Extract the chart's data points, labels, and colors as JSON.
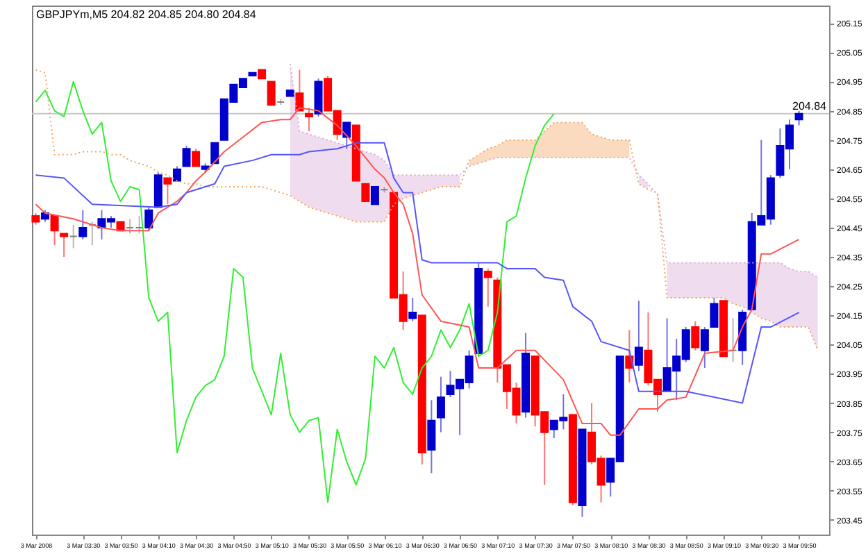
{
  "chart_data": {
    "type": "candlestick",
    "title": "GBPJPYm,M5 204.82 204.85 204.80 204.84",
    "x": [
      "2008-03-03T03:05",
      "2008-03-03T03:10",
      "2008-03-03T03:15",
      "2008-03-03T03:20",
      "2008-03-03T03:25",
      "2008-03-03T03:30",
      "2008-03-03T03:35",
      "2008-03-03T03:40",
      "2008-03-03T03:45",
      "2008-03-03T03:50",
      "2008-03-03T03:55",
      "2008-03-03T04:00",
      "2008-03-03T04:05",
      "2008-03-03T04:10",
      "2008-03-03T04:15",
      "2008-03-03T04:20",
      "2008-03-03T04:25",
      "2008-03-03T04:30",
      "2008-03-03T04:35",
      "2008-03-03T04:40",
      "2008-03-03T04:45",
      "2008-03-03T04:50",
      "2008-03-03T04:55",
      "2008-03-03T05:00",
      "2008-03-03T05:05",
      "2008-03-03T05:10",
      "2008-03-03T05:15",
      "2008-03-03T05:20",
      "2008-03-03T05:25",
      "2008-03-03T05:30",
      "2008-03-03T05:35",
      "2008-03-03T05:40",
      "2008-03-03T05:45",
      "2008-03-03T05:50",
      "2008-03-03T05:55",
      "2008-03-03T06:00",
      "2008-03-03T06:05",
      "2008-03-03T06:10",
      "2008-03-03T06:15",
      "2008-03-03T06:20",
      "2008-03-03T06:25",
      "2008-03-03T06:30",
      "2008-03-03T06:35",
      "2008-03-03T06:40",
      "2008-03-03T06:45",
      "2008-03-03T06:50",
      "2008-03-03T06:55",
      "2008-03-03T07:00",
      "2008-03-03T07:05",
      "2008-03-03T07:10",
      "2008-03-03T07:15",
      "2008-03-03T07:20",
      "2008-03-03T07:25",
      "2008-03-03T07:30",
      "2008-03-03T07:35",
      "2008-03-03T07:40",
      "2008-03-03T07:45",
      "2008-03-03T07:50",
      "2008-03-03T07:55",
      "2008-03-03T08:00",
      "2008-03-03T08:05",
      "2008-03-03T08:10",
      "2008-03-03T08:15",
      "2008-03-03T08:20",
      "2008-03-03T08:25",
      "2008-03-03T08:30",
      "2008-03-03T08:35",
      "2008-03-03T08:40",
      "2008-03-03T08:45",
      "2008-03-03T08:50",
      "2008-03-03T08:55",
      "2008-03-03T09:00",
      "2008-03-03T09:05",
      "2008-03-03T09:10",
      "2008-03-03T09:15",
      "2008-03-03T09:20",
      "2008-03-03T09:25",
      "2008-03-03T09:30",
      "2008-03-03T09:35",
      "2008-03-03T09:40",
      "2008-03-03T09:45",
      "2008-03-03T09:50",
      "2008-03-03T09:55",
      "2008-03-03T10:00"
    ],
    "ohlc": [
      [
        204.49,
        204.5,
        204.46,
        204.47
      ],
      [
        204.48,
        204.51,
        204.47,
        204.5
      ],
      [
        204.49,
        204.49,
        204.39,
        204.44
      ],
      [
        204.43,
        204.43,
        204.35,
        204.42
      ],
      [
        204.42,
        204.46,
        204.38,
        204.42
      ],
      [
        204.42,
        204.51,
        204.41,
        204.45
      ],
      [
        204.46,
        204.47,
        204.39,
        204.46
      ],
      [
        204.45,
        204.51,
        204.41,
        204.48
      ],
      [
        204.47,
        204.49,
        204.45,
        204.48
      ],
      [
        204.47,
        204.47,
        204.44,
        204.44
      ],
      [
        204.45,
        204.48,
        204.43,
        204.45
      ],
      [
        204.45,
        204.49,
        204.43,
        204.45
      ],
      [
        204.45,
        204.52,
        204.44,
        204.51
      ],
      [
        204.52,
        204.64,
        204.52,
        204.63
      ],
      [
        204.62,
        204.62,
        204.53,
        204.6
      ],
      [
        204.61,
        204.66,
        204.61,
        204.65
      ],
      [
        204.66,
        204.73,
        204.66,
        204.72
      ],
      [
        204.71,
        204.72,
        204.66,
        204.66
      ],
      [
        204.65,
        204.67,
        204.64,
        204.66
      ],
      [
        204.67,
        204.74,
        204.67,
        204.74
      ],
      [
        204.75,
        204.89,
        204.75,
        204.89
      ],
      [
        204.88,
        204.94,
        204.88,
        204.94
      ],
      [
        204.93,
        204.96,
        204.93,
        204.96
      ],
      [
        204.97,
        204.98,
        204.97,
        204.98
      ],
      [
        204.99,
        204.99,
        204.96,
        204.96
      ],
      [
        204.95,
        204.95,
        204.87,
        204.87
      ],
      [
        204.88,
        204.89,
        204.87,
        204.88
      ],
      [
        204.9,
        204.92,
        204.9,
        204.92
      ],
      [
        204.91,
        204.99,
        204.85,
        204.85
      ],
      [
        204.84,
        204.86,
        204.78,
        204.83
      ],
      [
        204.84,
        204.96,
        204.83,
        204.95
      ],
      [
        204.96,
        204.97,
        204.85,
        204.85
      ],
      [
        204.85,
        204.85,
        204.75,
        204.77
      ],
      [
        204.76,
        204.81,
        204.72,
        204.81
      ],
      [
        204.8,
        204.8,
        204.61,
        204.61
      ],
      [
        204.6,
        204.6,
        204.54,
        204.54
      ],
      [
        204.53,
        204.59,
        204.53,
        204.59
      ],
      [
        204.58,
        204.59,
        204.57,
        204.58
      ],
      [
        204.57,
        204.57,
        204.21,
        204.21
      ],
      [
        204.22,
        204.3,
        204.1,
        204.13
      ],
      [
        204.14,
        204.21,
        204.13,
        204.16
      ],
      [
        204.15,
        204.15,
        203.64,
        203.68
      ],
      [
        203.69,
        203.86,
        203.61,
        203.79
      ],
      [
        203.8,
        203.94,
        203.75,
        203.87
      ],
      [
        203.88,
        203.96,
        203.87,
        203.91
      ],
      [
        203.9,
        203.93,
        203.74,
        203.93
      ],
      [
        203.92,
        204.03,
        203.9,
        204.01
      ],
      [
        204.02,
        204.33,
        204.01,
        204.31
      ],
      [
        204.3,
        204.31,
        204.18,
        204.28
      ],
      [
        204.27,
        204.28,
        203.92,
        203.97
      ],
      [
        203.98,
        203.98,
        203.83,
        203.89
      ],
      [
        203.9,
        203.92,
        203.78,
        203.81
      ],
      [
        203.82,
        204.09,
        203.8,
        204.02
      ],
      [
        204.01,
        204.01,
        203.77,
        203.81
      ],
      [
        203.82,
        203.82,
        203.57,
        203.75
      ],
      [
        203.76,
        203.79,
        203.73,
        203.79
      ],
      [
        203.79,
        203.88,
        203.76,
        203.8
      ],
      [
        203.81,
        203.81,
        203.5,
        203.51
      ],
      [
        203.5,
        203.76,
        203.46,
        203.76
      ],
      [
        203.75,
        203.85,
        203.64,
        203.65
      ],
      [
        203.66,
        203.67,
        203.51,
        203.57
      ],
      [
        203.58,
        203.66,
        203.53,
        203.66
      ],
      [
        203.65,
        204.01,
        203.65,
        204.01
      ],
      [
        204.01,
        204.1,
        203.92,
        203.97
      ],
      [
        203.98,
        204.2,
        203.96,
        204.04
      ],
      [
        204.03,
        204.16,
        203.91,
        203.92
      ],
      [
        203.93,
        203.93,
        203.82,
        203.88
      ],
      [
        203.89,
        204.14,
        203.89,
        203.97
      ],
      [
        203.96,
        204.07,
        203.86,
        204.01
      ],
      [
        204.0,
        204.11,
        203.99,
        204.1
      ],
      [
        204.11,
        204.13,
        204.03,
        204.04
      ],
      [
        204.03,
        204.11,
        203.97,
        204.1
      ],
      [
        204.11,
        204.21,
        204.11,
        204.19
      ],
      [
        204.2,
        204.2,
        204.01,
        204.01
      ],
      [
        204.03,
        204.14,
        203.99,
        204.03
      ],
      [
        204.03,
        204.17,
        203.98,
        204.16
      ],
      [
        204.17,
        204.5,
        204.17,
        204.47
      ],
      [
        204.46,
        204.75,
        204.46,
        204.49
      ],
      [
        204.48,
        204.63,
        204.46,
        204.62
      ],
      [
        204.63,
        204.79,
        204.62,
        204.73
      ],
      [
        204.72,
        204.82,
        204.65,
        204.8
      ],
      [
        204.82,
        204.85,
        204.8,
        204.84
      ],
      null,
      null
    ],
    "colors": [
      "#ff0000",
      "#0000cc",
      "#ff0000",
      "#ff0000",
      "#808080",
      "#0000cc",
      "#808080",
      "#0000cc",
      "#0000cc",
      "#ff0000",
      "#808080",
      "#808080",
      "#0000cc",
      "#0000cc",
      "#ff0000",
      "#0000cc",
      "#0000cc",
      "#ff0000",
      "#0000cc",
      "#0000cc",
      "#0000cc",
      "#0000cc",
      "#0000cc",
      "#0000cc",
      "#ff0000",
      "#ff0000",
      "#808080",
      "#0000cc",
      "#ff0000",
      "#ff0000",
      "#0000cc",
      "#ff0000",
      "#ff0000",
      "#0000cc",
      "#ff0000",
      "#ff0000",
      "#0000cc",
      "#808080",
      "#ff0000",
      "#ff0000",
      "#0000cc",
      "#ff0000",
      "#0000cc",
      "#0000cc",
      "#0000cc",
      "#0000cc",
      "#0000cc",
      "#0000cc",
      "#ff0000",
      "#ff0000",
      "#ff0000",
      "#ff0000",
      "#0000cc",
      "#ff0000",
      "#ff0000",
      "#0000cc",
      "#0000cc",
      "#ff0000",
      "#0000cc",
      "#ff0000",
      "#ff0000",
      "#0000cc",
      "#0000cc",
      "#ff0000",
      "#0000cc",
      "#ff0000",
      "#ff0000",
      "#0000cc",
      "#0000cc",
      "#0000cc",
      "#ff0000",
      "#0000cc",
      "#0000cc",
      "#ff0000",
      "#808080",
      "#0000cc",
      "#0000cc",
      "#0000cc",
      "#0000cc",
      "#0000cc",
      "#0000cc",
      "#0000cc",
      null,
      null
    ],
    "series": [
      {
        "type": "line",
        "line_style": "dotted",
        "color": "#f4a460",
        "values": [
          204.99,
          204.98,
          204.7,
          204.7,
          204.7,
          204.71,
          204.71,
          204.71,
          204.7,
          204.7,
          204.68,
          204.67,
          204.66,
          204.64,
          204.63,
          204.61,
          204.6,
          204.6,
          204.59,
          204.59,
          204.59,
          204.59,
          204.59,
          204.59,
          204.59,
          204.58,
          204.57,
          204.56,
          204.54,
          204.52,
          204.51,
          204.5,
          204.49,
          204.48,
          204.47,
          204.47,
          204.47,
          204.47,
          204.53,
          204.55,
          204.56,
          204.57,
          204.58,
          204.59,
          204.59,
          204.59,
          204.68,
          204.7,
          204.72,
          204.73,
          204.75,
          204.75,
          204.75,
          204.75,
          204.78,
          204.81,
          204.81,
          204.81,
          204.81,
          204.77,
          204.76,
          204.75,
          204.75,
          204.75,
          204.6,
          204.58,
          204.57,
          204.21,
          204.21,
          204.21,
          204.21,
          204.21,
          204.21,
          204.21,
          204.19,
          204.18,
          204.16,
          204.14,
          204.13,
          204.11,
          204.11,
          204.11,
          204.11,
          204.03
        ],
        "lower": [
          null,
          null,
          null,
          null,
          null,
          null,
          null,
          null,
          null,
          null,
          null,
          null,
          null,
          null,
          null,
          null,
          null,
          null,
          null,
          null,
          null,
          null,
          null,
          null,
          null,
          null,
          null,
          null,
          null,
          null,
          null,
          null,
          null,
          null,
          null,
          null,
          null,
          null,
          null,
          null,
          null,
          null,
          null,
          null,
          null,
          null,
          204.66,
          204.67,
          204.68,
          204.69,
          204.69,
          204.69,
          204.69,
          204.69,
          204.69,
          204.69,
          204.69,
          204.69,
          204.69,
          204.69,
          204.69,
          204.69,
          204.69,
          204.69,
          null,
          null,
          null,
          null,
          null,
          null,
          null,
          null,
          null,
          null,
          null,
          null,
          null,
          null,
          null,
          null,
          null,
          null,
          null,
          null
        ],
        "upper": [
          null,
          null,
          null,
          null,
          null,
          null,
          null,
          null,
          null,
          null,
          null,
          null,
          null,
          null,
          null,
          null,
          null,
          null,
          null,
          null,
          null,
          null,
          null,
          null,
          null,
          null,
          null,
          null,
          null,
          null,
          null,
          null,
          null,
          null,
          null,
          null,
          null,
          null,
          null,
          null,
          null,
          null,
          null,
          null,
          null,
          null,
          204.68,
          204.7,
          204.72,
          204.73,
          204.75,
          204.75,
          204.75,
          204.75,
          204.78,
          204.81,
          204.81,
          204.81,
          204.81,
          204.77,
          204.76,
          204.75,
          204.75,
          204.75,
          null,
          null,
          null,
          null,
          null,
          null,
          null,
          null,
          null,
          null,
          null,
          null,
          null,
          null,
          null,
          null,
          null,
          null,
          null,
          null
        ]
      },
      {
        "type": "line",
        "line_style": "dotted",
        "color": "#d8a8d8",
        "values": [
          null,
          null,
          null,
          null,
          null,
          null,
          null,
          null,
          null,
          null,
          null,
          null,
          null,
          null,
          null,
          null,
          null,
          null,
          null,
          null,
          null,
          null,
          null,
          null,
          null,
          null,
          null,
          205.01,
          204.78,
          204.77,
          204.76,
          204.75,
          204.74,
          204.73,
          204.72,
          204.71,
          204.7,
          204.68,
          204.63,
          204.63,
          204.63,
          204.63,
          204.63,
          204.63,
          204.63,
          204.63,
          204.66,
          204.67,
          204.68,
          204.69,
          204.69,
          204.69,
          204.69,
          204.69,
          204.69,
          204.69,
          204.69,
          204.69,
          204.69,
          204.69,
          204.69,
          204.69,
          204.69,
          204.69,
          204.63,
          204.6,
          204.56,
          204.33,
          204.33,
          204.33,
          204.33,
          204.33,
          204.33,
          204.33,
          204.33,
          204.33,
          204.33,
          204.33,
          204.33,
          204.33,
          204.31,
          204.3,
          204.3,
          204.28
        ],
        "lower": [
          null,
          null,
          null,
          null,
          null,
          null,
          null,
          null,
          null,
          null,
          null,
          null,
          null,
          null,
          null,
          null,
          null,
          null,
          null,
          null,
          null,
          null,
          null,
          null,
          null,
          null,
          null,
          204.56,
          204.54,
          204.52,
          204.51,
          204.5,
          204.49,
          204.48,
          204.47,
          204.47,
          204.47,
          204.47,
          204.53,
          204.55,
          204.56,
          204.57,
          204.58,
          204.59,
          204.59,
          204.59,
          null,
          null,
          null,
          null,
          null,
          null,
          null,
          null,
          null,
          null,
          null,
          null,
          null,
          null,
          null,
          null,
          null,
          null,
          204.6,
          204.58,
          null,
          204.21,
          204.21,
          204.21,
          204.21,
          204.21,
          204.21,
          204.21,
          204.19,
          204.18,
          204.16,
          204.14,
          204.13,
          204.11,
          204.11,
          204.11,
          204.11,
          204.03
        ],
        "upper": [
          null,
          null,
          null,
          null,
          null,
          null,
          null,
          null,
          null,
          null,
          null,
          null,
          null,
          null,
          null,
          null,
          null,
          null,
          null,
          null,
          null,
          null,
          null,
          null,
          null,
          null,
          null,
          205.01,
          204.78,
          204.77,
          204.76,
          204.75,
          204.74,
          204.73,
          204.72,
          204.71,
          204.7,
          204.68,
          204.63,
          204.63,
          204.63,
          204.63,
          204.63,
          204.63,
          204.63,
          204.63,
          null,
          null,
          null,
          null,
          null,
          null,
          null,
          null,
          null,
          null,
          null,
          null,
          null,
          null,
          null,
          null,
          null,
          null,
          204.63,
          204.6,
          null,
          204.33,
          204.33,
          204.33,
          204.33,
          204.33,
          204.33,
          204.33,
          204.33,
          204.33,
          204.33,
          204.33,
          204.33,
          204.33,
          204.31,
          204.3,
          204.3,
          204.28
        ]
      },
      {
        "type": "line",
        "color": "#33ee33",
        "values": [
          204.88,
          204.92,
          204.85,
          204.83,
          204.95,
          204.85,
          204.77,
          204.81,
          204.61,
          204.54,
          204.59,
          204.58,
          204.21,
          204.13,
          204.16,
          203.68,
          203.79,
          203.87,
          203.91,
          203.93,
          204.01,
          204.31,
          204.28,
          203.97,
          203.89,
          203.81,
          204.02,
          203.81,
          203.75,
          203.79,
          203.8,
          203.51,
          203.76,
          203.65,
          203.57,
          203.66,
          204.01,
          203.97,
          204.04,
          203.92,
          203.88,
          203.97,
          204.01,
          204.1,
          204.04,
          204.1,
          204.19,
          204.01,
          204.03,
          204.16,
          204.47,
          204.49,
          204.62,
          204.73,
          204.8,
          204.84,
          null,
          null,
          null,
          null,
          null,
          null,
          null,
          null,
          null,
          null,
          null,
          null,
          null,
          null,
          null,
          null,
          null,
          null,
          null,
          null,
          null,
          null,
          null,
          null,
          null,
          null,
          null,
          null
        ]
      },
      {
        "type": "line",
        "color": "#ff5555",
        "x": [
          "2008-03-03T03:05",
          "2008-03-03T03:10",
          "2008-03-03T03:25",
          "2008-03-03T03:40",
          "2008-03-03T03:50",
          "2008-03-03T04:05",
          "2008-03-03T04:10",
          "2008-03-03T04:20",
          "2008-03-03T04:25",
          "2008-03-03T04:30",
          "2008-03-03T04:35",
          "2008-03-03T04:45",
          "2008-03-03T04:55",
          "2008-03-03T05:05",
          "2008-03-03T05:15",
          "2008-03-03T05:20",
          "2008-03-03T05:25",
          "2008-03-03T05:35",
          "2008-03-03T05:45",
          "2008-03-03T05:55",
          "2008-03-03T06:05",
          "2008-03-03T06:10",
          "2008-03-03T06:15",
          "2008-03-03T06:20",
          "2008-03-03T06:25",
          "2008-03-03T06:30",
          "2008-03-03T06:40",
          "2008-03-03T06:55",
          "2008-03-03T07:00",
          "2008-03-03T07:10",
          "2008-03-03T07:20",
          "2008-03-03T07:30",
          "2008-03-03T07:45",
          "2008-03-03T07:55",
          "2008-03-03T08:05",
          "2008-03-03T08:10",
          "2008-03-03T08:15",
          "2008-03-03T08:25",
          "2008-03-03T08:35",
          "2008-03-03T08:40",
          "2008-03-03T08:50",
          "2008-03-03T09:00",
          "2008-03-03T09:15",
          "2008-03-03T09:20",
          "2008-03-03T09:25",
          "2008-03-03T09:30",
          "2008-03-03T09:35",
          "2008-03-03T09:50"
        ],
        "values": [
          204.53,
          204.5,
          204.48,
          204.45,
          204.44,
          204.44,
          204.5,
          204.54,
          204.57,
          204.61,
          204.64,
          204.71,
          204.76,
          204.81,
          204.82,
          204.82,
          204.86,
          204.85,
          204.8,
          204.73,
          204.65,
          204.62,
          204.57,
          204.53,
          204.43,
          204.22,
          204.13,
          204.11,
          203.97,
          203.97,
          204.03,
          204.03,
          203.93,
          203.78,
          203.78,
          203.74,
          203.74,
          203.83,
          203.83,
          203.86,
          203.87,
          204.02,
          204.03,
          204.11,
          204.17,
          204.36,
          204.36,
          204.41
        ]
      },
      {
        "type": "line",
        "color": "#5555ff",
        "x": [
          "2008-03-03T03:05",
          "2008-03-03T03:20",
          "2008-03-03T03:35",
          "2008-03-03T04:10",
          "2008-03-03T04:20",
          "2008-03-03T04:25",
          "2008-03-03T04:40",
          "2008-03-03T04:45",
          "2008-03-03T05:00",
          "2008-03-03T05:10",
          "2008-03-03T05:25",
          "2008-03-03T05:30",
          "2008-03-03T05:45",
          "2008-03-03T05:55",
          "2008-03-03T06:10",
          "2008-03-03T06:15",
          "2008-03-03T06:20",
          "2008-03-03T06:25",
          "2008-03-03T06:30",
          "2008-03-03T06:35",
          "2008-03-03T07:10",
          "2008-03-03T07:15",
          "2008-03-03T07:30",
          "2008-03-03T07:35",
          "2008-03-03T07:45",
          "2008-03-03T07:50",
          "2008-03-03T08:00",
          "2008-03-03T08:05",
          "2008-03-03T08:20",
          "2008-03-03T08:25",
          "2008-03-03T08:50",
          "2008-03-03T09:20",
          "2008-03-03T09:30",
          "2008-03-03T09:35",
          "2008-03-03T09:50"
        ],
        "values": [
          204.63,
          204.62,
          204.53,
          204.52,
          204.53,
          204.57,
          204.6,
          204.66,
          204.68,
          204.7,
          204.7,
          204.71,
          204.72,
          204.74,
          204.74,
          204.62,
          204.57,
          204.57,
          204.34,
          204.33,
          204.33,
          204.31,
          204.31,
          204.28,
          204.27,
          204.18,
          204.13,
          204.06,
          204.03,
          203.89,
          203.89,
          203.85,
          204.11,
          204.11,
          204.16
        ]
      }
    ],
    "xlim": [
      "2008-03-03T03:03",
      "2008-03-03T10:06"
    ],
    "xticks": [
      {
        "value": "2008-03-03T03:05",
        "label": "3 Mar 2008"
      },
      {
        "value": "2008-03-03T03:30",
        "label": "3 Mar 03:30"
      },
      {
        "value": "2008-03-03T03:50",
        "label": "3 Mar 03:50"
      },
      {
        "value": "2008-03-03T04:10",
        "label": "3 Mar 04:10"
      },
      {
        "value": "2008-03-03T04:30",
        "label": "3 Mar 04:30"
      },
      {
        "value": "2008-03-03T04:50",
        "label": "3 Mar 04:50"
      },
      {
        "value": "2008-03-03T05:10",
        "label": "3 Mar 05:10"
      },
      {
        "value": "2008-03-03T05:30",
        "label": "3 Mar 05:30"
      },
      {
        "value": "2008-03-03T05:50",
        "label": "3 Mar 05:50"
      },
      {
        "value": "2008-03-03T06:10",
        "label": "3 Mar 06:10"
      },
      {
        "value": "2008-03-03T06:30",
        "label": "3 Mar 06:30"
      },
      {
        "value": "2008-03-03T06:50",
        "label": "3 Mar 06:50"
      },
      {
        "value": "2008-03-03T07:10",
        "label": "3 Mar 07:10"
      },
      {
        "value": "2008-03-03T07:30",
        "label": "3 Mar 07:30"
      },
      {
        "value": "2008-03-03T07:50",
        "label": "3 Mar 07:50"
      },
      {
        "value": "2008-03-03T08:10",
        "label": "3 Mar 08:10"
      },
      {
        "value": "2008-03-03T08:30",
        "label": "3 Mar 08:30"
      },
      {
        "value": "2008-03-03T08:50",
        "label": "3 Mar 08:50"
      },
      {
        "value": "2008-03-03T09:10",
        "label": "3 Mar 09:10"
      },
      {
        "value": "2008-03-03T09:30",
        "label": "3 Mar 09:30"
      },
      {
        "value": "2008-03-03T09:50",
        "label": "3 Mar 09:50"
      }
    ],
    "ylim": [
      203.4,
      205.21
    ],
    "yticks": [
      203.45,
      203.55,
      203.65,
      203.75,
      203.85,
      203.95,
      204.05,
      204.15,
      204.25,
      204.35,
      204.45,
      204.55,
      204.65,
      204.75,
      204.85,
      204.95,
      205.05,
      205.15
    ],
    "ref_lines": [
      {
        "axis": "y",
        "value": 204.84,
        "label": "204.84",
        "color": "#c8c8c8"
      }
    ]
  }
}
